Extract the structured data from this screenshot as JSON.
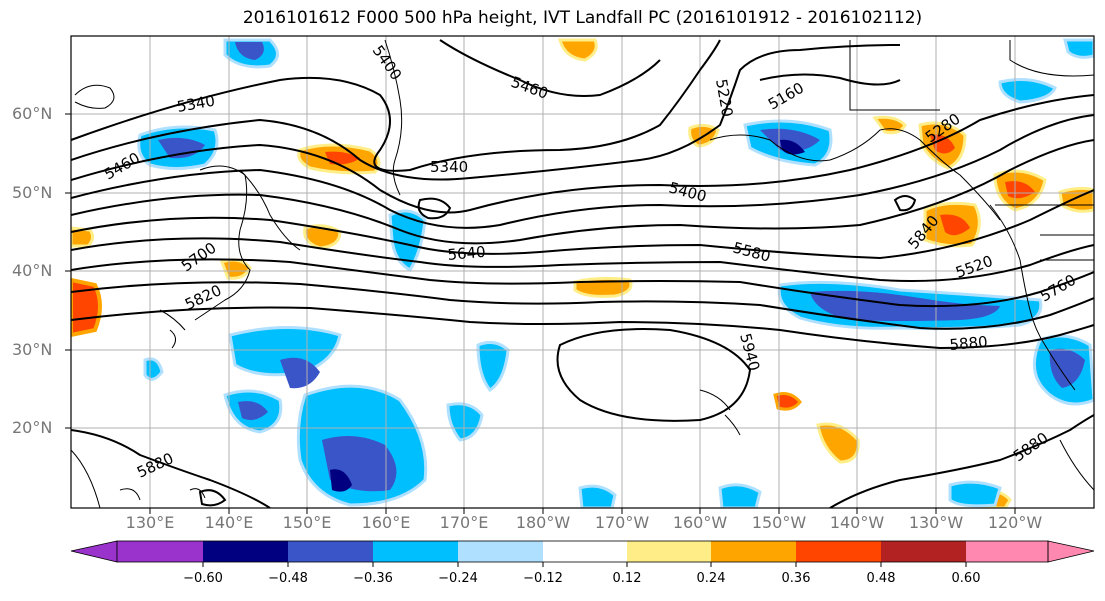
{
  "title": "2016101612 F000 500 hPa height, IVT Landfall PC (2016101912 - 2016102112)",
  "map": {
    "lat_labels": [
      "60°N",
      "50°N",
      "40°N",
      "30°N",
      "20°N"
    ],
    "lon_labels": [
      "130°E",
      "140°E",
      "150°E",
      "160°E",
      "170°E",
      "180°W",
      "170°W",
      "160°W",
      "150°W",
      "140°W",
      "130°W",
      "120°W"
    ],
    "contour_labels": [
      "5340",
      "5400",
      "5460",
      "5220",
      "5160",
      "5280",
      "5460",
      "5340",
      "5400",
      "5580",
      "5640",
      "5700",
      "5820",
      "5520",
      "5840",
      "5760",
      "5880",
      "5940",
      "5880",
      "5880"
    ],
    "colors": {
      "neg_strong": "#3a55c8",
      "neg_mid": "#00bfff",
      "neg_weak": "#b0e0ff",
      "pos_weak": "#ffee88",
      "pos_mid": "#ffa500",
      "pos_strong": "#ff4500"
    }
  },
  "colorbar": {
    "tick_labels": [
      "−0.60",
      "−0.48",
      "−0.36",
      "−0.24",
      "−0.12",
      "0.12",
      "0.24",
      "0.36",
      "0.48",
      "0.60"
    ],
    "colors": [
      "#9933cc",
      "#000080",
      "#3a55c8",
      "#00bfff",
      "#b0e0ff",
      "#ffffff",
      "#ffee88",
      "#ffa500",
      "#ff4500",
      "#b22222",
      "#ff88b0"
    ]
  }
}
